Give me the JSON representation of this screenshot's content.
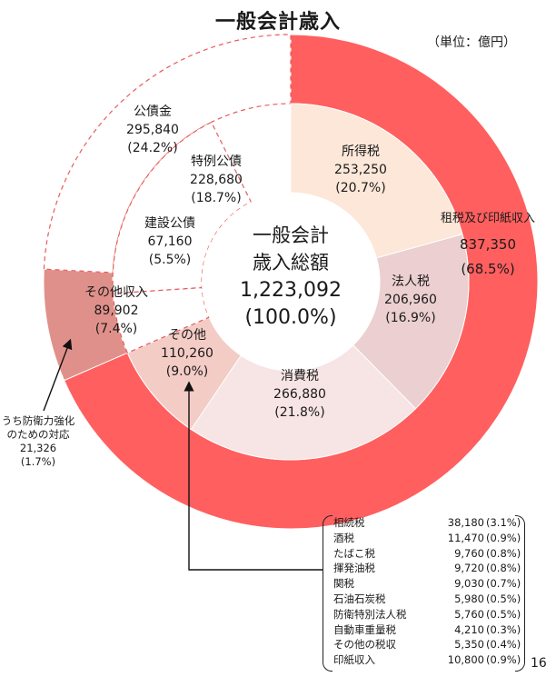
{
  "title": "一般会計歳入",
  "unit": "（単位：億円）",
  "page_number": "16",
  "center": {
    "line1": "一般会計",
    "line2": "歳入総額",
    "value": "1,223,092",
    "pct": "(100.0%)"
  },
  "chart_data": {
    "type": "pie",
    "total": 1223092,
    "outer_ring": [
      {
        "name": "租税及び印紙収入",
        "value": 837350,
        "pct": "(68.5%)",
        "color": "#ff5f5f"
      },
      {
        "name": "その他収入",
        "value": 89902,
        "pct": "(7.4%)",
        "color": "#e0908a"
      },
      {
        "name": "公債金",
        "value": 295840,
        "pct": "(24.2%)",
        "color": "#ffffff",
        "dashed": true
      }
    ],
    "inner_ring": [
      {
        "name": "所得税",
        "value": 253250,
        "pct": "(20.7%)",
        "color": "#fce7d8"
      },
      {
        "name": "法人税",
        "value": 206960,
        "pct": "(16.9%)",
        "color": "#eccfd0"
      },
      {
        "name": "消費税",
        "value": 266880,
        "pct": "(21.8%)",
        "color": "#f7e4e4"
      },
      {
        "name": "その他",
        "value": 110260,
        "pct": "(9.0%)",
        "color": "#f3ccc6"
      },
      {
        "name": "建設公債",
        "value": 67160,
        "pct": "(5.5%)",
        "color": "#ffffff",
        "dashed": true
      },
      {
        "name": "特例公債",
        "value": 228680,
        "pct": "(18.7%)",
        "color": "#ffffff",
        "dashed": true
      }
    ]
  },
  "labels": {
    "tax_name": "租税及び印紙収入",
    "tax_value": "837,350",
    "tax_pct": "(68.5%)",
    "other_income_name": "その他収入",
    "other_income_value": "89,902",
    "other_income_pct": "(7.4%)",
    "bonds_name": "公債金",
    "bonds_value": "295,840",
    "bonds_pct": "(24.2%)",
    "income_tax_name": "所得税",
    "income_tax_value": "253,250",
    "income_tax_pct": "(20.7%)",
    "corp_tax_name": "法人税",
    "corp_tax_value": "206,960",
    "corp_tax_pct": "(16.9%)",
    "consumption_tax_name": "消費税",
    "consumption_tax_value": "266,880",
    "consumption_tax_pct": "(21.8%)",
    "other_tax_name": "その他",
    "other_tax_value": "110,260",
    "other_tax_pct": "(9.0%)",
    "construction_bond_name": "建設公債",
    "construction_bond_value": "67,160",
    "construction_bond_pct": "(5.5%)",
    "special_bond_name": "特例公債",
    "special_bond_value": "228,680",
    "special_bond_pct": "(18.7%)"
  },
  "defense_note": {
    "line1": "うち防衛力強化",
    "line2": "のための対応",
    "value": "21,326",
    "pct": "(1.7%)"
  },
  "other_tax_breakdown": [
    {
      "name": "相続税",
      "value": "38,180",
      "pct": "(3.1%)"
    },
    {
      "name": "酒税",
      "value": "11,470",
      "pct": "(0.9%)"
    },
    {
      "name": "たばこ税",
      "value": "9,760",
      "pct": "(0.8%)"
    },
    {
      "name": "揮発油税",
      "value": "9,720",
      "pct": "(0.8%)"
    },
    {
      "name": "関税",
      "value": "9,030",
      "pct": "(0.7%)"
    },
    {
      "name": "石油石炭税",
      "value": "5,980",
      "pct": "(0.5%)"
    },
    {
      "name": "防衛特別法人税",
      "value": "5,760",
      "pct": "(0.5%)"
    },
    {
      "name": "自動車重量税",
      "value": "4,210",
      "pct": "(0.3%)"
    },
    {
      "name": "その他の税収",
      "value": "5,350",
      "pct": "(0.4%)"
    },
    {
      "name": "印紙収入",
      "value": "10,800",
      "pct": "(0.9%)"
    }
  ]
}
